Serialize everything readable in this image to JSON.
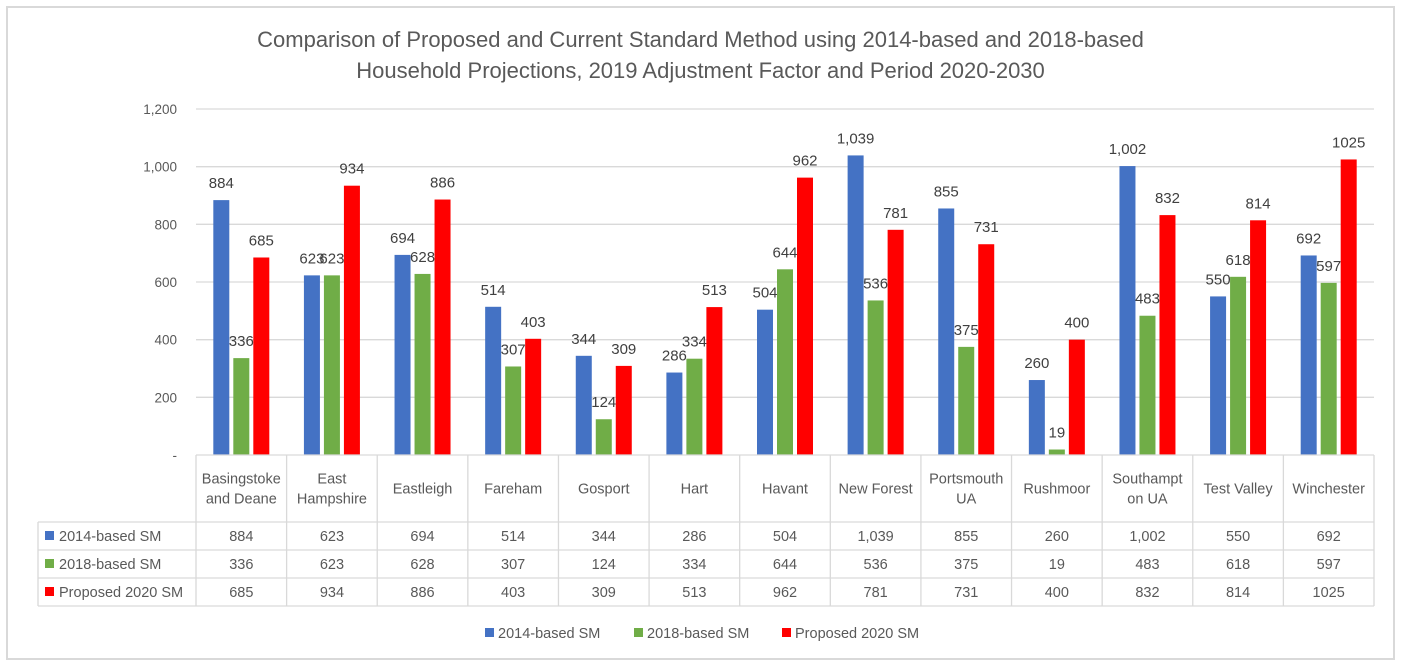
{
  "chart_data": {
    "type": "bar",
    "title": "Comparison of Proposed and Current Standard Method using 2014-based and 2018-based Household Projections, 2019 Adjustment Factor and Period 2020-2030",
    "title_lines": [
      "Comparison of Proposed and Current Standard Method using 2014-based and 2018-based",
      "Household Projections, 2019 Adjustment Factor and Period 2020-2030"
    ],
    "xlabel": "",
    "ylabel": "",
    "ylim": [
      0,
      1200
    ],
    "yticks": [
      0,
      200,
      400,
      600,
      800,
      1000,
      1200
    ],
    "ytick_labels": [
      "-",
      "200",
      "400",
      "600",
      "800",
      "1,000",
      "1,200"
    ],
    "grid": true,
    "legend_position": "bottom",
    "data_table": true,
    "categories": [
      [
        "Basingstoke",
        "and Deane"
      ],
      [
        "East",
        "Hampshire"
      ],
      [
        "Eastleigh"
      ],
      [
        "Fareham"
      ],
      [
        "Gosport"
      ],
      [
        "Hart"
      ],
      [
        "Havant"
      ],
      [
        "New Forest"
      ],
      [
        "Portsmouth",
        "UA"
      ],
      [
        "Rushmoor"
      ],
      [
        "Southampt",
        "on UA"
      ],
      [
        "Test Valley"
      ],
      [
        "Winchester"
      ]
    ],
    "series": [
      {
        "name": "2014-based SM",
        "color": "#4472C4",
        "values": [
          884,
          623,
          694,
          514,
          344,
          286,
          504,
          1039,
          855,
          260,
          1002,
          550,
          692
        ],
        "labels": [
          "884",
          "623",
          "694",
          "514",
          "344",
          "286",
          "504",
          "1,039",
          "855",
          "260",
          "1,002",
          "550",
          "692"
        ]
      },
      {
        "name": "2018-based SM",
        "color": "#70AD47",
        "values": [
          336,
          623,
          628,
          307,
          124,
          334,
          644,
          536,
          375,
          19,
          483,
          618,
          597
        ],
        "labels": [
          "336",
          "623",
          "628",
          "307",
          "124",
          "334",
          "644",
          "536",
          "375",
          "19",
          "483",
          "618",
          "597"
        ]
      },
      {
        "name": "Proposed 2020 SM",
        "color": "#FF0000",
        "values": [
          685,
          934,
          886,
          403,
          309,
          513,
          962,
          781,
          731,
          400,
          832,
          814,
          1025
        ],
        "labels": [
          "685",
          "934",
          "886",
          "403",
          "309",
          "513",
          "962",
          "781",
          "731",
          "400",
          "832",
          "814",
          "1025"
        ]
      }
    ]
  }
}
